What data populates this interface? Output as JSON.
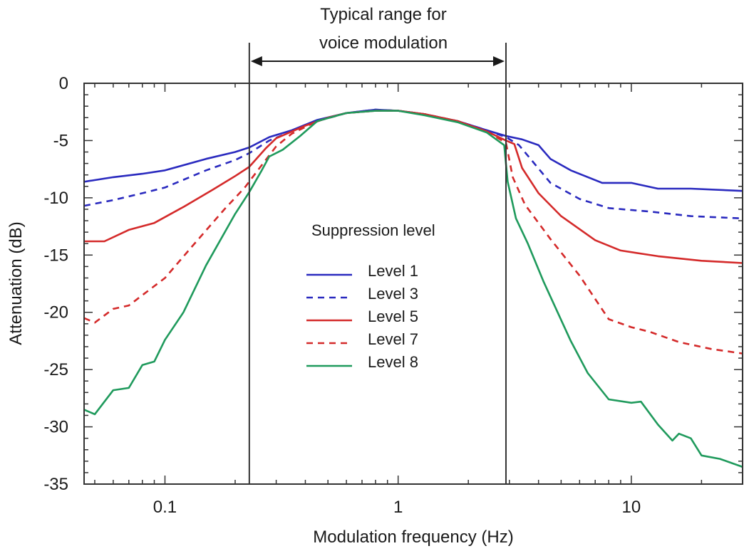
{
  "chart_data": {
    "type": "line",
    "title": "",
    "xlabel": "Modulation frequency (Hz)",
    "ylabel": "Attenuation (dB)",
    "x_scale": "log",
    "xlim": [
      0.045,
      30
    ],
    "ylim": [
      -35,
      0
    ],
    "x_tick_labels": [
      "0.1",
      "1",
      "10"
    ],
    "y_tick_labels": [
      "0",
      "-5",
      "-10",
      "-15",
      "-20",
      "-25",
      "-30",
      "-35"
    ],
    "annotation": {
      "lines": [
        "Typical range for",
        "voice modulation"
      ],
      "range_hz": [
        0.23,
        2.9
      ]
    },
    "legend": {
      "title": "Suppression level",
      "placement": "center"
    },
    "series": [
      {
        "name": "Level 1",
        "color": "#2a2abf",
        "dash": "solid",
        "points": [
          [
            0.045,
            -8.6
          ],
          [
            0.06,
            -8.2
          ],
          [
            0.08,
            -7.9
          ],
          [
            0.1,
            -7.6
          ],
          [
            0.15,
            -6.6
          ],
          [
            0.2,
            -6.0
          ],
          [
            0.23,
            -5.6
          ],
          [
            0.28,
            -4.7
          ],
          [
            0.35,
            -4.1
          ],
          [
            0.45,
            -3.2
          ],
          [
            0.6,
            -2.6
          ],
          [
            0.8,
            -2.3
          ],
          [
            1.0,
            -2.4
          ],
          [
            1.3,
            -2.7
          ],
          [
            1.8,
            -3.3
          ],
          [
            2.4,
            -4.1
          ],
          [
            2.9,
            -4.6
          ],
          [
            3.4,
            -4.9
          ],
          [
            4.0,
            -5.4
          ],
          [
            4.5,
            -6.6
          ],
          [
            5.5,
            -7.6
          ],
          [
            7.5,
            -8.7
          ],
          [
            10,
            -8.7
          ],
          [
            13,
            -9.2
          ],
          [
            18,
            -9.2
          ],
          [
            30,
            -9.4
          ]
        ]
      },
      {
        "name": "Level 3",
        "color": "#2a2abf",
        "dash": "dashed",
        "points": [
          [
            0.045,
            -10.7
          ],
          [
            0.06,
            -10.2
          ],
          [
            0.08,
            -9.6
          ],
          [
            0.1,
            -9.1
          ],
          [
            0.15,
            -7.6
          ],
          [
            0.2,
            -6.7
          ],
          [
            0.23,
            -6.1
          ],
          [
            0.28,
            -5.0
          ],
          [
            0.35,
            -4.2
          ],
          [
            0.45,
            -3.3
          ],
          [
            0.6,
            -2.6
          ],
          [
            0.8,
            -2.3
          ],
          [
            1.0,
            -2.4
          ],
          [
            1.3,
            -2.7
          ],
          [
            1.8,
            -3.3
          ],
          [
            2.4,
            -4.1
          ],
          [
            2.9,
            -4.7
          ],
          [
            3.3,
            -5.4
          ],
          [
            3.8,
            -6.9
          ],
          [
            4.5,
            -8.7
          ],
          [
            6,
            -10.1
          ],
          [
            8,
            -10.9
          ],
          [
            12,
            -11.2
          ],
          [
            18,
            -11.6
          ],
          [
            30,
            -11.8
          ]
        ]
      },
      {
        "name": "Level 5",
        "color": "#d42a2a",
        "dash": "solid",
        "points": [
          [
            0.045,
            -13.8
          ],
          [
            0.055,
            -13.8
          ],
          [
            0.07,
            -12.8
          ],
          [
            0.09,
            -12.2
          ],
          [
            0.12,
            -10.8
          ],
          [
            0.16,
            -9.3
          ],
          [
            0.2,
            -8.1
          ],
          [
            0.23,
            -7.3
          ],
          [
            0.27,
            -5.7
          ],
          [
            0.3,
            -4.8
          ],
          [
            0.4,
            -3.7
          ],
          [
            0.5,
            -3.0
          ],
          [
            0.6,
            -2.6
          ],
          [
            0.8,
            -2.4
          ],
          [
            1.0,
            -2.4
          ],
          [
            1.3,
            -2.7
          ],
          [
            1.8,
            -3.3
          ],
          [
            2.4,
            -4.2
          ],
          [
            2.9,
            -5.0
          ],
          [
            3.15,
            -5.3
          ],
          [
            3.4,
            -7.4
          ],
          [
            4.0,
            -9.6
          ],
          [
            5,
            -11.6
          ],
          [
            7,
            -13.7
          ],
          [
            9,
            -14.6
          ],
          [
            13,
            -15.1
          ],
          [
            20,
            -15.5
          ],
          [
            30,
            -15.7
          ]
        ]
      },
      {
        "name": "Level 7",
        "color": "#d42a2a",
        "dash": "dashed",
        "points": [
          [
            0.045,
            -20.5
          ],
          [
            0.05,
            -20.9
          ],
          [
            0.06,
            -19.7
          ],
          [
            0.07,
            -19.4
          ],
          [
            0.08,
            -18.5
          ],
          [
            0.1,
            -17.0
          ],
          [
            0.13,
            -14.3
          ],
          [
            0.18,
            -11.0
          ],
          [
            0.22,
            -9.1
          ],
          [
            0.25,
            -7.6
          ],
          [
            0.3,
            -5.5
          ],
          [
            0.35,
            -4.4
          ],
          [
            0.45,
            -3.3
          ],
          [
            0.6,
            -2.6
          ],
          [
            0.8,
            -2.4
          ],
          [
            1.0,
            -2.4
          ],
          [
            1.3,
            -2.7
          ],
          [
            1.8,
            -3.3
          ],
          [
            2.4,
            -4.2
          ],
          [
            2.9,
            -5.2
          ],
          [
            3.1,
            -8.2
          ],
          [
            3.5,
            -10.6
          ],
          [
            4.5,
            -13.6
          ],
          [
            6,
            -16.8
          ],
          [
            8,
            -20.6
          ],
          [
            10,
            -21.3
          ],
          [
            12,
            -21.7
          ],
          [
            16,
            -22.6
          ],
          [
            22,
            -23.2
          ],
          [
            30,
            -23.6
          ]
        ]
      },
      {
        "name": "Level 8",
        "color": "#1f9a5c",
        "dash": "solid",
        "points": [
          [
            0.045,
            -28.5
          ],
          [
            0.05,
            -28.9
          ],
          [
            0.06,
            -26.8
          ],
          [
            0.07,
            -26.6
          ],
          [
            0.08,
            -24.6
          ],
          [
            0.09,
            -24.3
          ],
          [
            0.1,
            -22.4
          ],
          [
            0.12,
            -20.0
          ],
          [
            0.15,
            -15.9
          ],
          [
            0.2,
            -11.4
          ],
          [
            0.23,
            -9.5
          ],
          [
            0.26,
            -7.6
          ],
          [
            0.28,
            -6.4
          ],
          [
            0.32,
            -5.8
          ],
          [
            0.38,
            -4.6
          ],
          [
            0.45,
            -3.3
          ],
          [
            0.6,
            -2.6
          ],
          [
            0.8,
            -2.4
          ],
          [
            1.0,
            -2.4
          ],
          [
            1.3,
            -2.8
          ],
          [
            1.8,
            -3.4
          ],
          [
            2.4,
            -4.3
          ],
          [
            2.85,
            -5.4
          ],
          [
            2.95,
            -8.6
          ],
          [
            3.2,
            -11.8
          ],
          [
            3.6,
            -14.0
          ],
          [
            4.2,
            -17.3
          ],
          [
            5.5,
            -22.5
          ],
          [
            6.5,
            -25.3
          ],
          [
            8,
            -27.6
          ],
          [
            10,
            -27.9
          ],
          [
            11,
            -27.8
          ],
          [
            13,
            -29.8
          ],
          [
            15,
            -31.2
          ],
          [
            16,
            -30.6
          ],
          [
            18,
            -31.0
          ],
          [
            20,
            -32.5
          ],
          [
            24,
            -32.8
          ],
          [
            30,
            -33.5
          ]
        ]
      }
    ]
  }
}
